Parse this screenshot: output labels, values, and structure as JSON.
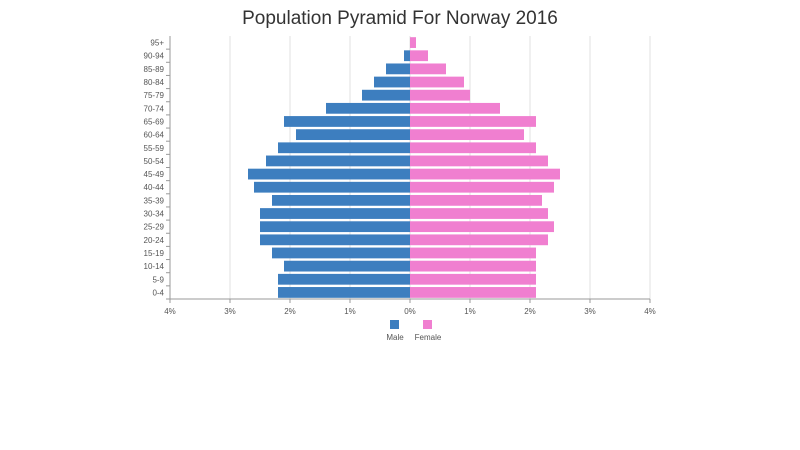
{
  "chart_data": {
    "type": "bar",
    "orientation": "horizontal",
    "title": "Population Pyramid For Norway 2016",
    "xlabel": "",
    "ylabel": "",
    "xlim": [
      -4,
      4
    ],
    "x_ticks": [
      {
        "value": -4,
        "label": "4%"
      },
      {
        "value": -3,
        "label": "3%"
      },
      {
        "value": -2,
        "label": "2%"
      },
      {
        "value": -1,
        "label": "1%"
      },
      {
        "value": 0,
        "label": "0%"
      },
      {
        "value": 1,
        "label": "1%"
      },
      {
        "value": 2,
        "label": "2%"
      },
      {
        "value": 3,
        "label": "3%"
      },
      {
        "value": 4,
        "label": "4%"
      }
    ],
    "grid": true,
    "legend_position": "bottom-center",
    "categories": [
      "0-4",
      "5-9",
      "10-14",
      "15-19",
      "20-24",
      "25-29",
      "30-34",
      "35-39",
      "40-44",
      "45-49",
      "50-54",
      "55-59",
      "60-64",
      "65-69",
      "70-74",
      "75-79",
      "80-84",
      "85-89",
      "90-94",
      "95+"
    ],
    "series": [
      {
        "name": "Male",
        "color": "#3d7ebf",
        "values": [
          2.2,
          2.2,
          2.1,
          2.3,
          2.5,
          2.5,
          2.5,
          2.3,
          2.6,
          2.7,
          2.4,
          2.2,
          1.9,
          2.1,
          1.4,
          0.8,
          0.6,
          0.4,
          0.1,
          0.0
        ]
      },
      {
        "name": "Female",
        "color": "#f07fd0",
        "values": [
          2.1,
          2.1,
          2.1,
          2.1,
          2.3,
          2.4,
          2.3,
          2.2,
          2.4,
          2.5,
          2.3,
          2.1,
          1.9,
          2.1,
          1.5,
          1.0,
          0.9,
          0.6,
          0.3,
          0.1
        ]
      }
    ]
  }
}
